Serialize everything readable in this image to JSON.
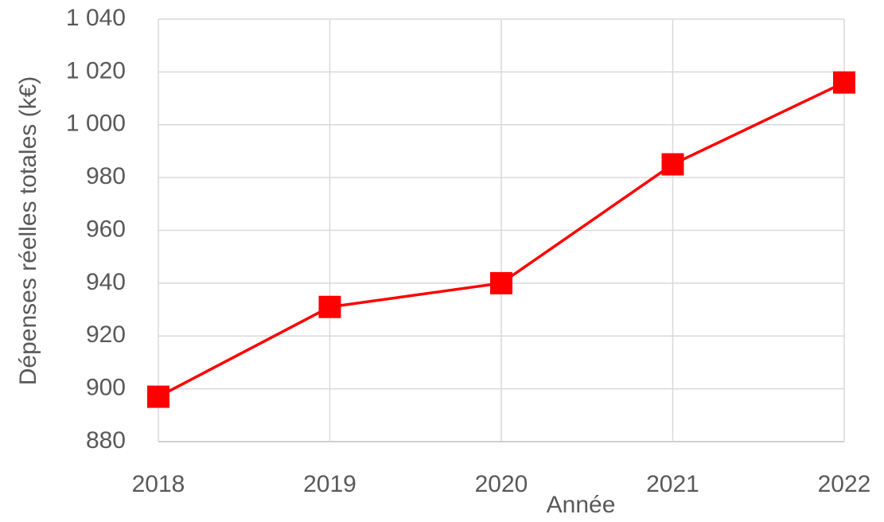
{
  "chart_data": {
    "type": "line",
    "x_label": "Année",
    "y_label": "Dépenses réelles totales (k€)",
    "x": [
      2018,
      2019,
      2020,
      2021,
      2022
    ],
    "series": [
      {
        "name": "Dépenses réelles totales",
        "color": "#ff0000",
        "values": [
          897,
          931,
          940,
          985,
          1016
        ]
      }
    ],
    "xlim": [
      2018,
      2022
    ],
    "xticks": [
      2018,
      2019,
      2020,
      2021,
      2022
    ],
    "ylim": [
      880,
      1040
    ],
    "yticks": [
      880,
      900,
      920,
      940,
      960,
      980,
      {
        "value": 1000,
        "label": "1 000"
      },
      {
        "value": 1020,
        "label": "1 020"
      },
      {
        "value": 1040,
        "label": "1 040"
      }
    ],
    "grid": true,
    "marker": "square"
  }
}
